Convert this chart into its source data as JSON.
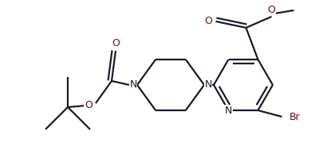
{
  "bg_color": "#ffffff",
  "line_color": "#1a1a2e",
  "o_color": "#8b0000",
  "n_color": "#1a1a2e",
  "br_color": "#8b0000",
  "bond_lw": 1.6,
  "figsize": [
    3.95,
    1.89
  ],
  "dpi": 100,
  "xlim": [
    0,
    395
  ],
  "ylim": [
    0,
    189
  ]
}
